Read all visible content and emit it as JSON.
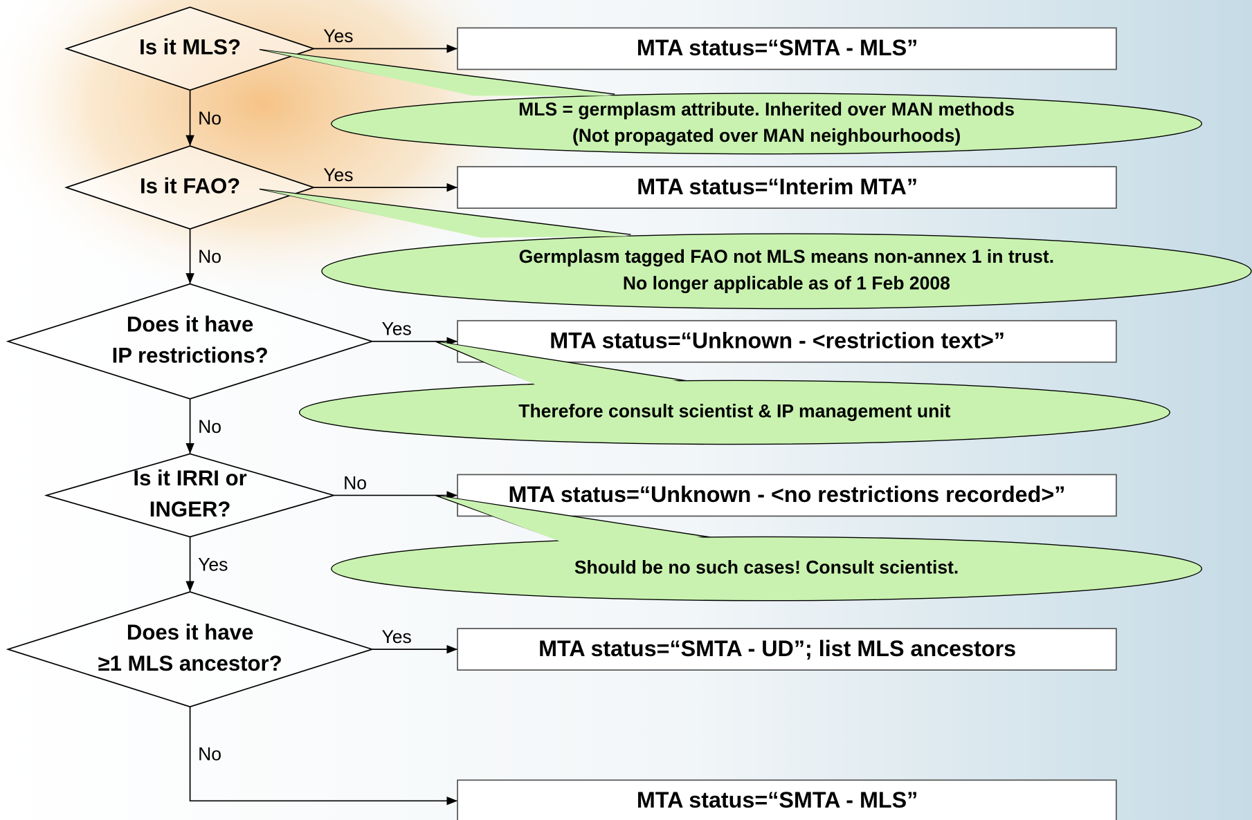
{
  "decisions": [
    {
      "label": [
        "Is it MLS?"
      ],
      "right": "Yes",
      "down": "No"
    },
    {
      "label": [
        "Is it FAO?"
      ],
      "right": "Yes",
      "down": "No"
    },
    {
      "label": [
        "Does it have",
        "IP restrictions?"
      ],
      "right": "Yes",
      "down": "No"
    },
    {
      "label": [
        "Is it IRRI or",
        "INGER?"
      ],
      "right": "No",
      "down": "Yes"
    },
    {
      "label": [
        "Does it have",
        "≥1 MLS ancestor?"
      ],
      "right": "Yes",
      "down": "No"
    }
  ],
  "outcomes": [
    "MTA status=“SMTA - MLS”",
    "MTA status=“Interim MTA”",
    "MTA status=“Unknown - <restriction text>”",
    "MTA status=“Unknown - <no restrictions recorded>”",
    "MTA status=“SMTA - UD”; list MLS ancestors",
    "MTA status=“SMTA - MLS”"
  ],
  "notes": [
    [
      "MLS = germplasm attribute. Inherited over MAN methods",
      "(Not propagated over MAN neighbourhoods)"
    ],
    [
      "Germplasm tagged FAO not MLS means non-annex 1 in trust.",
      "No longer applicable as of 1 Feb 2008"
    ],
    [
      "Therefore consult scientist & IP management unit"
    ],
    [
      "Should be no such cases! Consult scientist."
    ]
  ]
}
